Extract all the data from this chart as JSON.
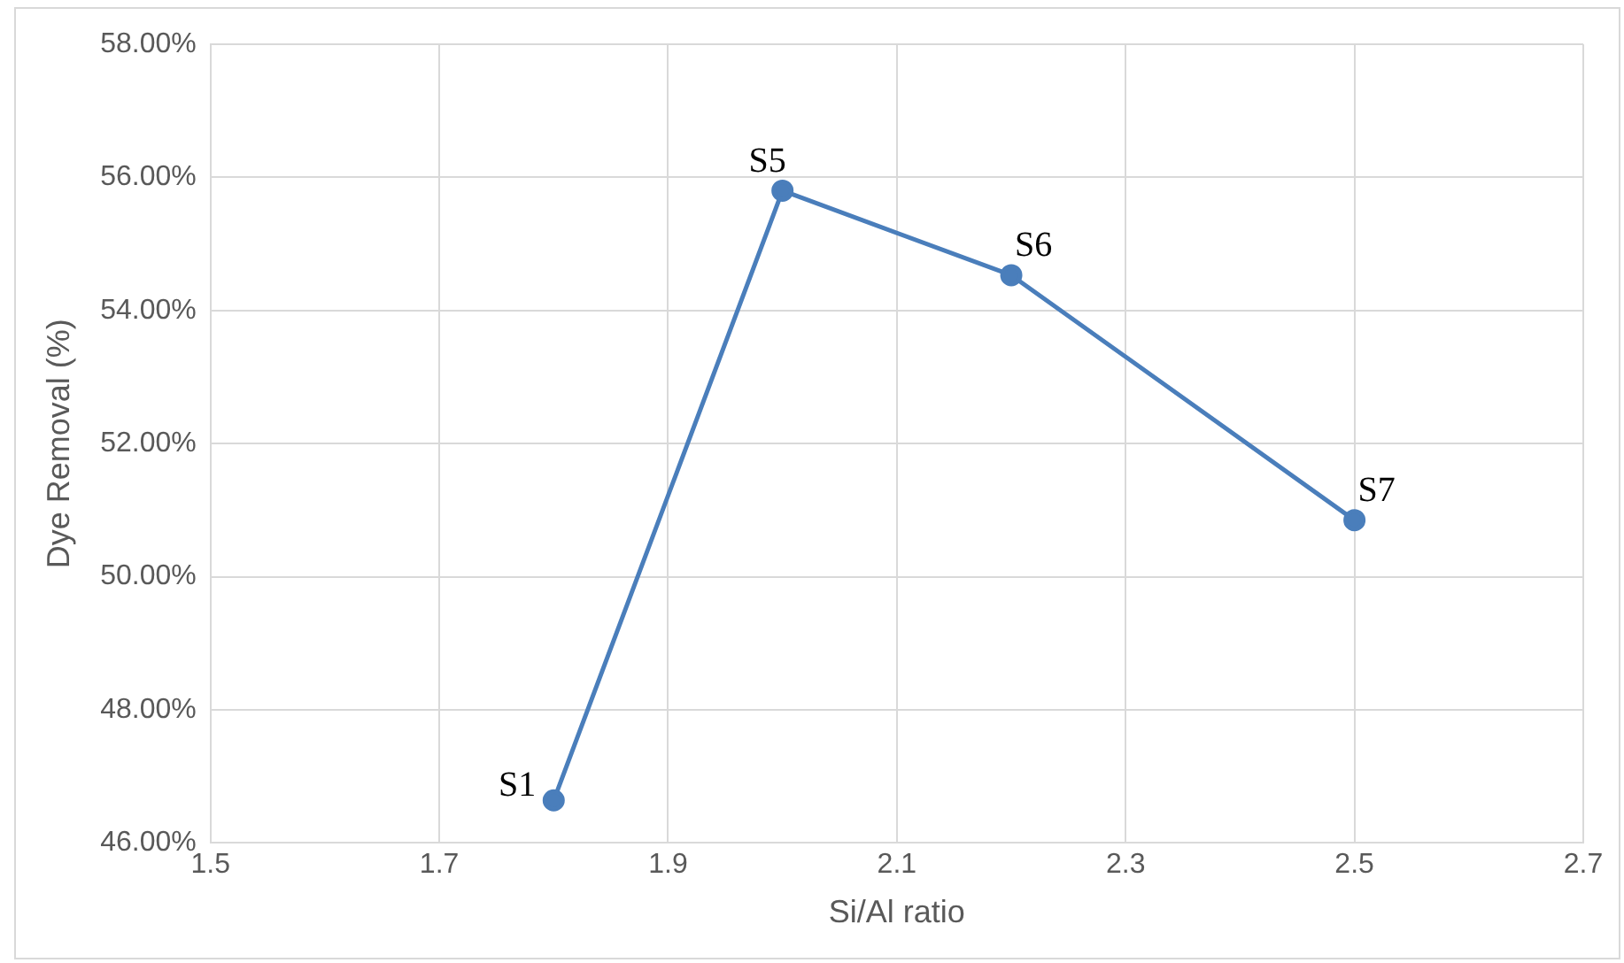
{
  "chart_data": {
    "type": "line",
    "xlabel": "Si/Al ratio",
    "ylabel": "Dye Removal (%)",
    "x": [
      1.8,
      2.0,
      2.2,
      2.5
    ],
    "series": [
      {
        "color": "#4a7ebb",
        "values": [
          46.64,
          55.8,
          54.53,
          50.85
        ]
      }
    ],
    "xlim": [
      1.5,
      2.7
    ],
    "xticks": [
      1.5,
      1.7,
      1.9,
      2.1,
      2.3,
      2.5,
      2.7
    ],
    "ylim": [
      46,
      58
    ],
    "yticks": [
      {
        "value": 46,
        "label": "46.00%"
      },
      {
        "value": 48,
        "label": "48.00%"
      },
      {
        "value": 50,
        "label": "50.00%"
      },
      {
        "value": 52,
        "label": "52.00%"
      },
      {
        "value": 54,
        "label": "54.00%"
      },
      {
        "value": 56,
        "label": "56.00%"
      },
      {
        "value": 58,
        "label": "58.00%"
      }
    ],
    "annotations": [
      {
        "text": "S1",
        "x": 1.8,
        "y": 46.64
      },
      {
        "text": "S5",
        "x": 2.0,
        "y": 55.8
      },
      {
        "text": "S6",
        "x": 2.2,
        "y": 54.53
      },
      {
        "text": "S7",
        "x": 2.5,
        "y": 50.85
      }
    ],
    "grid": true,
    "legend": false,
    "marker": "circle",
    "line_style": "solid"
  }
}
